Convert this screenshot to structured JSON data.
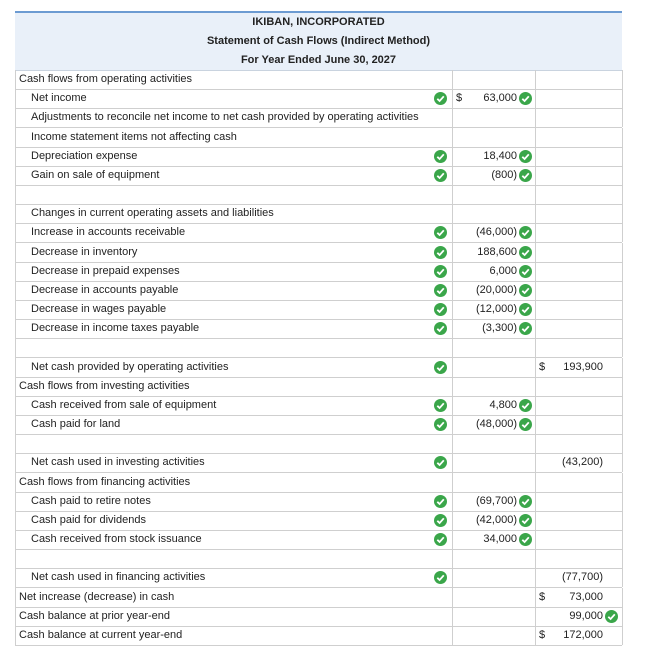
{
  "header": {
    "company": "IKIBAN, INCORPORATED",
    "statement": "Statement of Cash Flows (Indirect Method)",
    "period": "For Year Ended June 30, 2027"
  },
  "rows": [
    {
      "label": "Cash flows from operating activities"
    },
    {
      "label": "Net income",
      "indent": true,
      "label_check": true,
      "dollar1": "$",
      "amount1": "63,000",
      "amount1_check": true
    },
    {
      "label": "Adjustments to reconcile net income to net cash provided by operating activities",
      "indent": true
    },
    {
      "label": "Income statement items not affecting cash",
      "indent": true
    },
    {
      "label": "Depreciation expense",
      "indent": true,
      "label_check": true,
      "amount1": "18,400",
      "amount1_check": true
    },
    {
      "label": "Gain on sale of equipment",
      "indent": true,
      "label_check": true,
      "amount1": "(800)",
      "amount1_check": true
    },
    {},
    {
      "label": "Changes in current operating assets and liabilities",
      "indent": true
    },
    {
      "label": "Increase in accounts receivable",
      "indent": true,
      "label_check": true,
      "amount1": "(46,000)",
      "amount1_check": true
    },
    {
      "label": "Decrease in inventory",
      "indent": true,
      "label_check": true,
      "amount1": "188,600",
      "amount1_check": true
    },
    {
      "label": "Decrease in prepaid expenses",
      "indent": true,
      "label_check": true,
      "amount1": "6,000",
      "amount1_check": true
    },
    {
      "label": "Decrease in accounts payable",
      "indent": true,
      "label_check": true,
      "amount1": "(20,000)",
      "amount1_check": true
    },
    {
      "label": "Decrease in wages payable",
      "indent": true,
      "label_check": true,
      "amount1": "(12,000)",
      "amount1_check": true
    },
    {
      "label": "Decrease in income taxes payable",
      "indent": true,
      "label_check": true,
      "amount1": "(3,300)",
      "amount1_check": true
    },
    {},
    {
      "label": "Net cash provided by operating activities",
      "indent": true,
      "label_check": true,
      "dollar2": "$",
      "amount2": "193,900"
    },
    {
      "label": "Cash flows from investing activities"
    },
    {
      "label": "Cash received from sale of equipment",
      "indent": true,
      "label_check": true,
      "amount1": "4,800",
      "amount1_check": true
    },
    {
      "label": "Cash paid for land",
      "indent": true,
      "label_check": true,
      "amount1": "(48,000)",
      "amount1_check": true
    },
    {},
    {
      "label": "Net cash used in investing activities",
      "indent": true,
      "label_check": true,
      "amount2": "(43,200)"
    },
    {
      "label": "Cash flows from financing activities"
    },
    {
      "label": "Cash paid to retire notes",
      "indent": true,
      "label_check": true,
      "amount1": "(69,700)",
      "amount1_check": true
    },
    {
      "label": "Cash paid for dividends",
      "indent": true,
      "label_check": true,
      "amount1": "(42,000)",
      "amount1_check": true
    },
    {
      "label": "Cash received from stock issuance",
      "indent": true,
      "label_check": true,
      "amount1": "34,000",
      "amount1_check": true
    },
    {},
    {
      "label": "Net cash used in financing activities",
      "indent": true,
      "label_check": true,
      "amount2": "(77,700)"
    },
    {
      "label": "Net increase (decrease) in cash",
      "dollar2": "$",
      "amount2": "73,000"
    },
    {
      "label": "Cash balance at prior year-end",
      "amount2": "99,000",
      "amount2_check": true
    },
    {
      "label": "Cash balance at current year-end",
      "dollar2": "$",
      "amount2": "172,000"
    }
  ]
}
